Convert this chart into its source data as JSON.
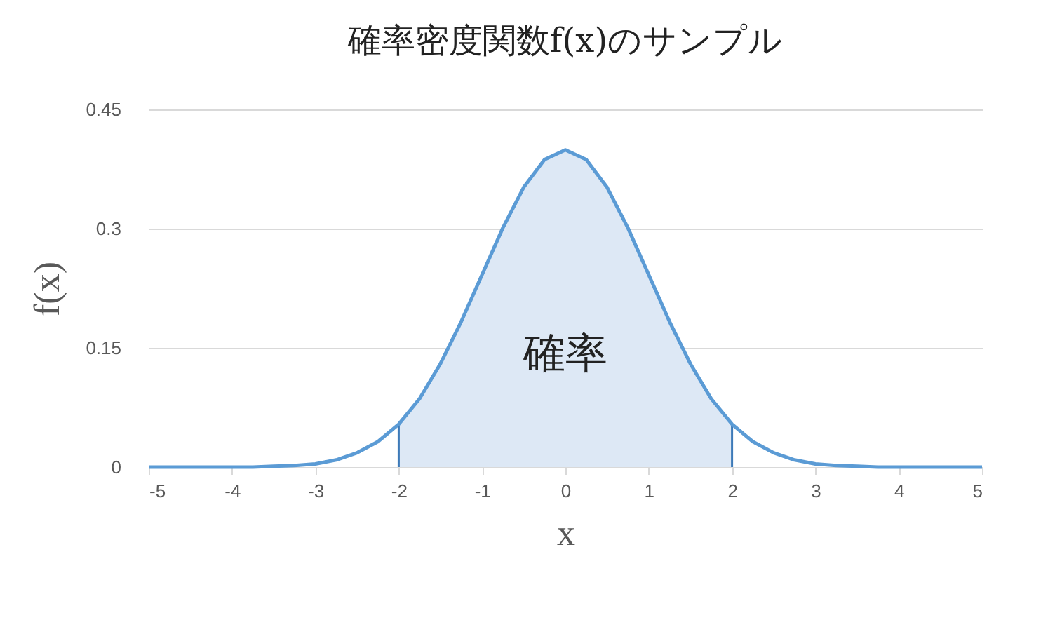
{
  "chart_data": {
    "type": "line",
    "title": "確率密度関数f(x)のサンプル",
    "xlabel": "x",
    "ylabel": "f(x)",
    "xlim": [
      -5,
      5
    ],
    "xticks": [
      -5,
      -4,
      -3,
      -2,
      -1,
      0,
      1,
      2,
      3,
      4,
      5
    ],
    "ylim": [
      0,
      0.45
    ],
    "yticks": [
      0,
      0.15,
      0.3,
      0.45
    ],
    "grid": "y",
    "marker": "none",
    "line_style": "solid",
    "annotations": [
      "確率"
    ],
    "series": [
      {
        "type": "area",
        "color": "#dde8f5",
        "x": [
          -2,
          -1.75,
          -1.5,
          -1.25,
          -1,
          -0.75,
          -0.5,
          -0.25,
          0,
          0.25,
          0.5,
          0.75,
          1,
          1.25,
          1.5,
          1.75,
          2
        ],
        "values": [
          0.054,
          0.086,
          0.13,
          0.183,
          0.242,
          0.301,
          0.352,
          0.387,
          0.399,
          0.387,
          0.352,
          0.301,
          0.242,
          0.183,
          0.13,
          0.086,
          0.054
        ]
      },
      {
        "color": "#5b9bd5",
        "x": [
          -5,
          -4.75,
          -4.5,
          -4.25,
          -4,
          -3.75,
          -3.5,
          -3.25,
          -3,
          -2.75,
          -2.5,
          -2.25,
          -2,
          -1.75,
          -1.5,
          -1.25,
          -1,
          -0.75,
          -0.5,
          -0.25,
          0,
          0.25,
          0.5,
          0.75,
          1,
          1.25,
          1.5,
          1.75,
          2,
          2.25,
          2.5,
          2.75,
          3,
          3.25,
          3.5,
          3.75,
          4,
          4.25,
          4.5,
          4.75,
          5
        ],
        "values": [
          0,
          0,
          0,
          0,
          0,
          0,
          0.001,
          0.002,
          0.004,
          0.009,
          0.018,
          0.032,
          0.054,
          0.086,
          0.13,
          0.183,
          0.242,
          0.301,
          0.352,
          0.387,
          0.399,
          0.387,
          0.352,
          0.301,
          0.242,
          0.183,
          0.13,
          0.086,
          0.054,
          0.032,
          0.018,
          0.009,
          0.004,
          0.002,
          0.001,
          0,
          0,
          0,
          0,
          0,
          0
        ]
      }
    ],
    "ref_lines": [
      {
        "axis": "x",
        "value": -2,
        "color": "#3d7ab8"
      },
      {
        "axis": "x",
        "value": 2,
        "color": "#3d7ab8"
      }
    ]
  }
}
